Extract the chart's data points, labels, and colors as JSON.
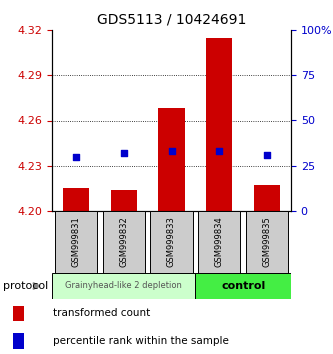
{
  "title": "GDS5113 / 10424691",
  "samples": [
    "GSM999831",
    "GSM999832",
    "GSM999833",
    "GSM999834",
    "GSM999835"
  ],
  "bar_bottom": 4.2,
  "bar_tops": [
    4.215,
    4.214,
    4.268,
    4.315,
    4.217
  ],
  "percentile_values": [
    30,
    32,
    33,
    33,
    31
  ],
  "ylim_left": [
    4.2,
    4.32
  ],
  "ylim_right": [
    0,
    100
  ],
  "yticks_left": [
    4.2,
    4.23,
    4.26,
    4.29,
    4.32
  ],
  "yticks_right": [
    0,
    25,
    50,
    75,
    100
  ],
  "bar_color": "#cc0000",
  "dot_color": "#0000cc",
  "group1_label": "Grainyhead-like 2 depletion",
  "group2_label": "control",
  "group1_color": "#ccffcc",
  "group2_color": "#44ee44",
  "protocol_label": "protocol",
  "legend_bar_label": "transformed count",
  "legend_dot_label": "percentile rank within the sample",
  "bar_width": 0.55,
  "title_fontsize": 10,
  "axis_color_left": "#cc0000",
  "axis_color_right": "#0000cc",
  "tick_fontsize": 8,
  "sample_fontsize": 6,
  "box_color": "#cccccc"
}
